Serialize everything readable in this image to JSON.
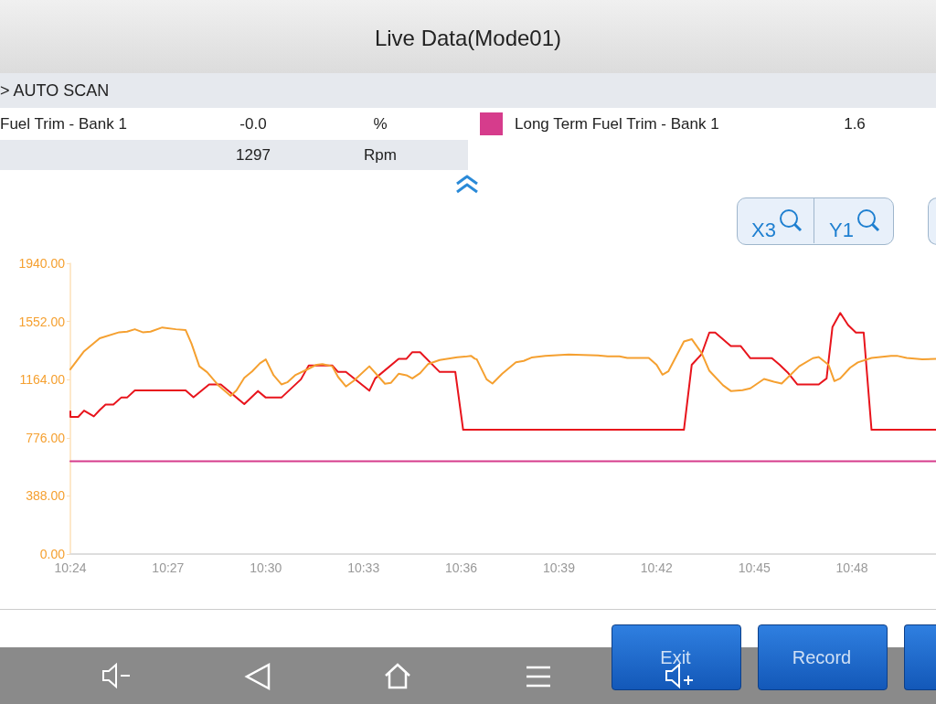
{
  "chart_data": {
    "type": "line",
    "title": "Live Data(Mode01)",
    "subtitle": "> AUTO SCAN",
    "annotations": [
      "Fuel Trim - Bank 1",
      "-0.0",
      "%",
      "1.6",
      "1297",
      "Rpm",
      "X3",
      "Y1",
      "Exit",
      "Record"
    ],
    "legend": "top",
    "grid": false,
    "marker": "none",
    "line_style": "solid",
    "xlim": [
      10.4,
      10.843
    ],
    "xticks": [
      {
        "value": 10.4,
        "label": "10:24"
      },
      {
        "value": 10.45,
        "label": "10:27"
      },
      {
        "value": 10.5,
        "label": "10:30"
      },
      {
        "value": 10.55,
        "label": "10:33"
      },
      {
        "value": 10.6,
        "label": "10:36"
      },
      {
        "value": 10.65,
        "label": "10:39"
      },
      {
        "value": 10.7,
        "label": "10:42"
      },
      {
        "value": 10.75,
        "label": "10:45"
      },
      {
        "value": 10.8,
        "label": "10:48"
      }
    ],
    "ylim": [
      0,
      1940
    ],
    "yticks": [
      {
        "value": 0,
        "label": "0.00"
      },
      {
        "value": 388,
        "label": "388.00"
      },
      {
        "value": 776,
        "label": "776.00"
      },
      {
        "value": 1164,
        "label": "1164.00"
      },
      {
        "value": 1552,
        "label": "1552.00"
      },
      {
        "value": 1940,
        "label": "1940.00"
      }
    ],
    "series": [
      {
        "name": "Long Term Fuel Trim - Bank 1",
        "color": "#d63c8c",
        "x": [
          10.4,
          10.843
        ],
        "values": [
          619,
          619
        ]
      },
      {
        "color": "#e8141c",
        "x": [
          10.4,
          10.4,
          10.404,
          10.407,
          10.412,
          10.415,
          10.418,
          10.422,
          10.426,
          10.429,
          10.433,
          10.459,
          10.463,
          10.471,
          10.477,
          10.489,
          10.496,
          10.5,
          10.508,
          10.518,
          10.522,
          10.534,
          10.537,
          10.541,
          10.553,
          10.556,
          10.568,
          10.572,
          10.575,
          10.579,
          10.589,
          10.597,
          10.601,
          10.714,
          10.718,
          10.723,
          10.727,
          10.73,
          10.738,
          10.743,
          10.748,
          10.759,
          10.763,
          10.767,
          10.772,
          10.783,
          10.787,
          10.79,
          10.794,
          10.798,
          10.802,
          10.806,
          10.81,
          10.843
        ],
        "values": [
          951,
          915,
          915,
          957,
          919,
          961,
          997,
          997,
          1044,
          1044,
          1092,
          1092,
          1046,
          1132,
          1132,
          1001,
          1088,
          1044,
          1044,
          1166,
          1259,
          1259,
          1215,
          1215,
          1090,
          1172,
          1303,
          1303,
          1347,
          1347,
          1215,
          1215,
          829,
          829,
          1263,
          1333,
          1478,
          1478,
          1388,
          1388,
          1307,
          1307,
          1263,
          1213,
          1132,
          1132,
          1172,
          1514,
          1609,
          1528,
          1478,
          1478,
          829,
          829
        ]
      },
      {
        "color": "#f5a030",
        "x": [
          10.4,
          10.407,
          10.415,
          10.425,
          10.429,
          10.433,
          10.437,
          10.441,
          10.447,
          10.454,
          10.459,
          10.462,
          10.466,
          10.47,
          10.476,
          10.482,
          10.485,
          10.489,
          10.493,
          10.497,
          10.5,
          10.504,
          10.508,
          10.511,
          10.515,
          10.522,
          10.526,
          10.529,
          10.534,
          10.537,
          10.541,
          10.545,
          10.553,
          10.561,
          10.564,
          10.568,
          10.572,
          10.575,
          10.579,
          10.583,
          10.589,
          10.598,
          10.602,
          10.605,
          10.607,
          10.608,
          10.613,
          10.616,
          10.621,
          10.628,
          10.632,
          10.636,
          10.643,
          10.655,
          10.67,
          10.675,
          10.681,
          10.685,
          10.696,
          10.7,
          10.703,
          10.706,
          10.714,
          10.718,
          10.723,
          10.727,
          10.734,
          10.738,
          10.744,
          10.748,
          10.755,
          10.76,
          10.764,
          10.773,
          10.78,
          10.783,
          10.788,
          10.791,
          10.794,
          10.799,
          10.803,
          10.81,
          10.82,
          10.823,
          10.828,
          10.836,
          10.843
        ],
        "values": [
          1233,
          1353,
          1440,
          1480,
          1484,
          1500,
          1480,
          1484,
          1512,
          1500,
          1494,
          1404,
          1253,
          1213,
          1122,
          1056,
          1092,
          1176,
          1219,
          1273,
          1299,
          1193,
          1132,
          1146,
          1193,
          1237,
          1263,
          1267,
          1253,
          1182,
          1118,
          1156,
          1253,
          1136,
          1142,
          1203,
          1193,
          1172,
          1207,
          1267,
          1295,
          1313,
          1317,
          1323,
          1303,
          1299,
          1166,
          1138,
          1203,
          1279,
          1289,
          1311,
          1323,
          1331,
          1325,
          1319,
          1319,
          1309,
          1309,
          1263,
          1197,
          1219,
          1418,
          1434,
          1343,
          1223,
          1126,
          1088,
          1094,
          1106,
          1168,
          1150,
          1138,
          1253,
          1307,
          1315,
          1263,
          1154,
          1172,
          1243,
          1279,
          1309,
          1323,
          1323,
          1309,
          1299,
          1303
        ]
      }
    ]
  }
}
